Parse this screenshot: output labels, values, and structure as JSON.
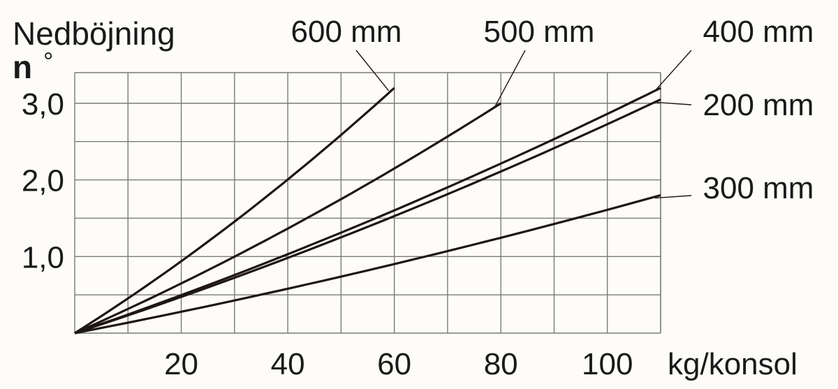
{
  "chart_data": {
    "type": "line",
    "title": "Nedböjning",
    "ylabel_symbol": "n",
    "ylabel_unit": "°",
    "xlabel": "kg/konsol",
    "xlim": [
      0,
      110
    ],
    "ylim": [
      0,
      3.4
    ],
    "grid": true,
    "x_ticks": [
      20,
      40,
      60,
      80,
      100
    ],
    "x_tick_labels": [
      "20",
      "40",
      "60",
      "80",
      "100"
    ],
    "y_ticks": [
      1.0,
      2.0,
      3.0
    ],
    "y_tick_labels": [
      "1,0",
      "2,0",
      "3,0"
    ],
    "series": [
      {
        "name": "600 mm",
        "x": [
          0,
          60
        ],
        "y": [
          0,
          3.2
        ]
      },
      {
        "name": "500 mm",
        "x": [
          0,
          80
        ],
        "y": [
          0,
          3.0
        ]
      },
      {
        "name": "400 mm",
        "x": [
          0,
          110
        ],
        "y": [
          0,
          3.2
        ]
      },
      {
        "name": "200 mm",
        "x": [
          0,
          110
        ],
        "y": [
          0,
          3.05
        ]
      },
      {
        "name": "300 mm",
        "x": [
          0,
          110
        ],
        "y": [
          0,
          1.8
        ]
      }
    ]
  }
}
